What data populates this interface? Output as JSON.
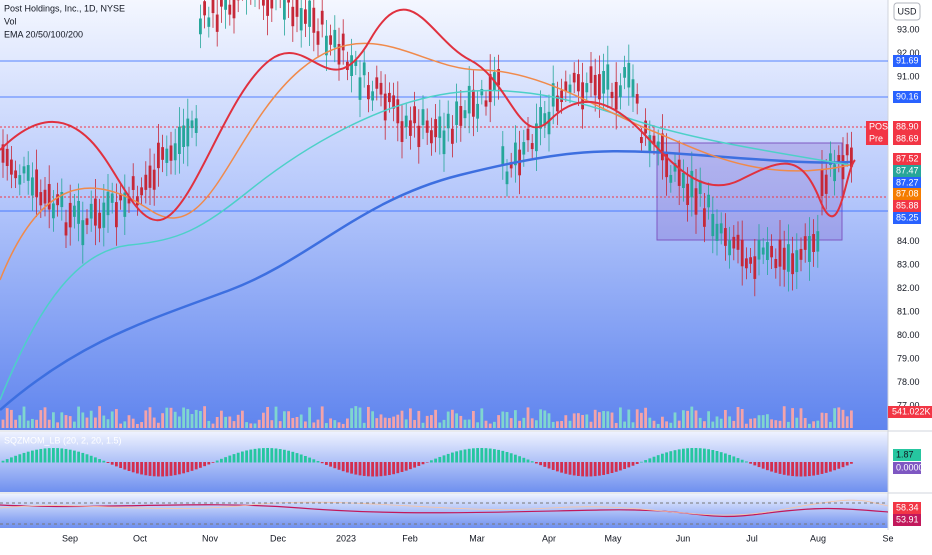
{
  "header": {
    "title": "Post Holdings, Inc., 1D, NYSE",
    "lines": [
      "Vol",
      "EMA 20/50/100/200"
    ]
  },
  "currency": "USD",
  "price_axis": [
    "93.00",
    "92.00",
    "91.00",
    "84.00",
    "83.00",
    "82.00",
    "81.00",
    "80.00",
    "79.00",
    "78.00",
    "77.00"
  ],
  "badges": [
    {
      "text": "91.69",
      "color": "#2962ff"
    },
    {
      "text": "90.16",
      "color": "#2962ff"
    },
    {
      "label": "POST",
      "text": "88.90",
      "color": "#f23645"
    },
    {
      "label": "Pre",
      "text": "88.69",
      "color": "#f23645"
    },
    {
      "text": "87.52",
      "color": "#f23645"
    },
    {
      "text": "87.47",
      "color": "#26a69a"
    },
    {
      "text": "87.27",
      "color": "#2962ff"
    },
    {
      "text": "87.08",
      "color": "#f57c00"
    },
    {
      "text": "85.88",
      "color": "#f23645"
    },
    {
      "text": "85.25",
      "color": "#2962ff"
    }
  ],
  "volume_badge": "541.022K",
  "momentum": {
    "label": "SQZMOM_LB (20, 2, 20, 1.5)",
    "values": [
      "1.87",
      "0.0000"
    ]
  },
  "oscillator": {
    "values": [
      "58.34",
      "53.91"
    ]
  },
  "time_axis": [
    "Sep",
    "Oct",
    "Nov",
    "Dec",
    "2023",
    "Feb",
    "Mar",
    "Apr",
    "May",
    "Jun",
    "Jul",
    "Aug",
    "Se"
  ]
}
